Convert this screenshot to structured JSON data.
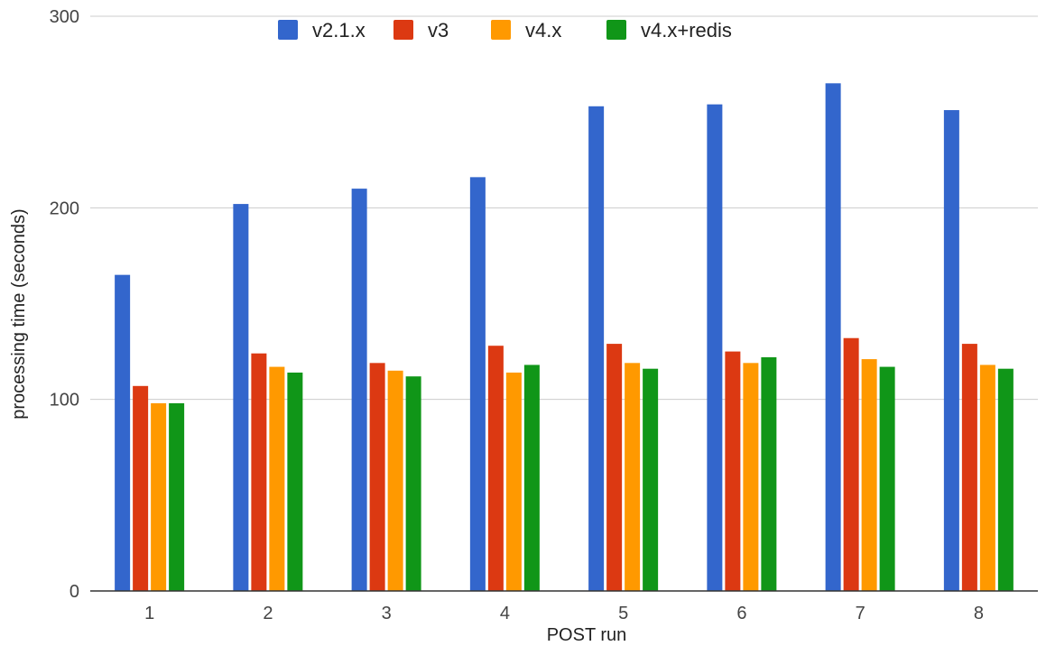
{
  "chart_data": {
    "type": "bar",
    "categories": [
      "1",
      "2",
      "3",
      "4",
      "5",
      "6",
      "7",
      "8"
    ],
    "series": [
      {
        "name": "v2.1.x",
        "color": "#3366cc",
        "values": [
          165,
          202,
          210,
          216,
          253,
          254,
          265,
          251
        ]
      },
      {
        "name": "v3",
        "color": "#dc3912",
        "values": [
          107,
          124,
          119,
          128,
          129,
          125,
          132,
          129
        ]
      },
      {
        "name": "v4.x",
        "color": "#ff9900",
        "values": [
          98,
          117,
          115,
          114,
          119,
          119,
          121,
          118
        ]
      },
      {
        "name": "v4.x+redis",
        "color": "#109618",
        "values": [
          98,
          114,
          112,
          118,
          116,
          122,
          117,
          116
        ]
      }
    ],
    "xlabel": "POST run",
    "ylabel": "processing time (seconds)",
    "ylim": [
      0,
      300
    ],
    "yticks": [
      "0",
      "100",
      "200",
      "300"
    ],
    "grid": true,
    "legend_position": "top"
  }
}
